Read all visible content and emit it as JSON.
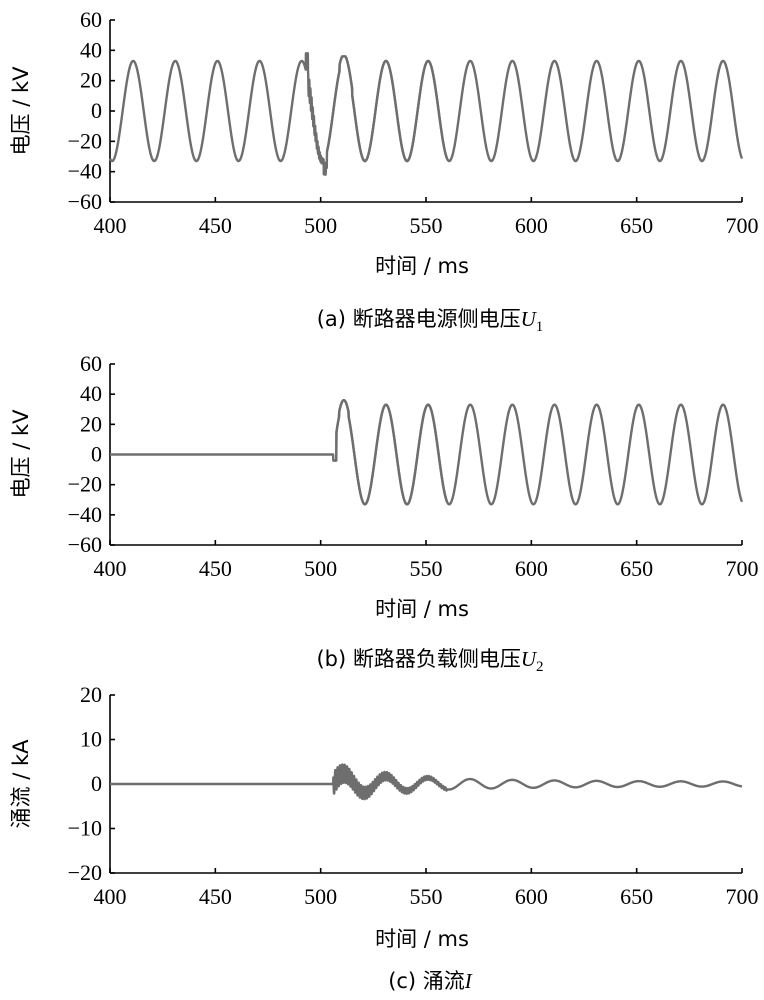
{
  "chart_data": [
    {
      "id": "a",
      "type": "line",
      "ylabel": "电压 / kV",
      "xlabel": "时间 / ms",
      "xlim": [
        400,
        700
      ],
      "ylim": [
        -60,
        60
      ],
      "xticks": [
        400,
        450,
        500,
        550,
        600,
        650,
        700
      ],
      "yticks": [
        60,
        40,
        20,
        0,
        -20,
        -40,
        -60
      ],
      "caption_prefix": "(a)  断路器电源侧电压",
      "caption_var": "U",
      "caption_sub": "1",
      "series": [
        {
          "color": "#6e6e6e",
          "frequency_hz": 50,
          "amplitude": 33,
          "disturbance": {
            "start": 493,
            "end": 503,
            "peak": 38,
            "trough": -38
          },
          "thick_band": {
            "start": 503,
            "end": 560
          },
          "end_value": -28
        }
      ]
    },
    {
      "id": "b",
      "type": "line",
      "ylabel": "电压 / kV",
      "xlabel": "时间 / ms",
      "xlim": [
        400,
        700
      ],
      "ylim": [
        -60,
        60
      ],
      "xticks": [
        400,
        450,
        500,
        550,
        600,
        650,
        700
      ],
      "yticks": [
        60,
        40,
        20,
        0,
        -20,
        -40,
        -60
      ],
      "caption_prefix": "(b)  断路器负载侧电压",
      "caption_var": "U",
      "caption_sub": "2",
      "series": [
        {
          "color": "#6e6e6e",
          "frequency_hz": 50,
          "amplitude": 33,
          "zero_until": 506,
          "dip": -4,
          "peak": 36,
          "thick_band": {
            "start": 506,
            "end": 560
          },
          "end_value": -28
        }
      ]
    },
    {
      "id": "c",
      "type": "line",
      "ylabel": "涌流 / kA",
      "xlabel": "时间 / ms",
      "xlim": [
        400,
        700
      ],
      "ylim": [
        -20,
        20
      ],
      "xticks": [
        400,
        450,
        500,
        550,
        600,
        650,
        700
      ],
      "yticks": [
        20,
        10,
        0,
        -10,
        -20
      ],
      "caption_prefix": "(c)  涌流",
      "caption_var": "I",
      "caption_sub": "",
      "series": [
        {
          "color": "#6e6e6e",
          "zero_until": 506,
          "initial_amplitude": 2.5,
          "final_amplitude": 0.5,
          "low_frequency_hz": 50,
          "ringing_until": 560
        }
      ]
    }
  ]
}
